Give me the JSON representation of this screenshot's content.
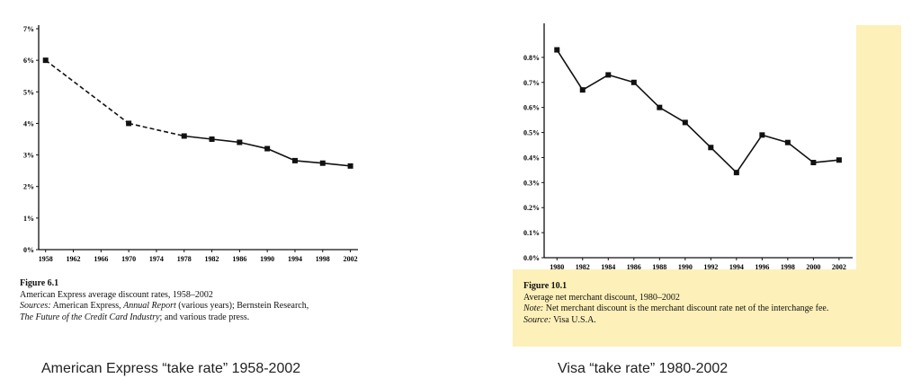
{
  "chart_data": [
    {
      "type": "line",
      "x": [
        1958,
        1970,
        1978,
        1982,
        1986,
        1990,
        1994,
        1998,
        2002
      ],
      "y": [
        6.0,
        4.0,
        3.6,
        3.5,
        3.4,
        3.2,
        2.82,
        2.74,
        2.65
      ],
      "dashed_segments_until": 1978,
      "xticks": [
        "1958",
        "1962",
        "1966",
        "1970",
        "1974",
        "1978",
        "1982",
        "1986",
        "1990",
        "1994",
        "1998",
        "2002"
      ],
      "yticks": [
        "0%",
        "1%",
        "2%",
        "3%",
        "4%",
        "5%",
        "6%",
        "7%"
      ],
      "xlim": [
        1957,
        2004
      ],
      "ylim": [
        0,
        7
      ],
      "title": "",
      "xlabel": "",
      "ylabel": "",
      "grid": false
    },
    {
      "type": "line",
      "x": [
        1980,
        1982,
        1984,
        1986,
        1988,
        1990,
        1992,
        1994,
        1996,
        1998,
        2000,
        2002
      ],
      "y": [
        0.83,
        0.67,
        0.73,
        0.7,
        0.6,
        0.54,
        0.44,
        0.34,
        0.49,
        0.46,
        0.38,
        0.39
      ],
      "xticks": [
        "1980",
        "1982",
        "1984",
        "1986",
        "1988",
        "1990",
        "1992",
        "1994",
        "1996",
        "1998",
        "2000",
        "2002"
      ],
      "yticks": [
        "0.0%",
        "0.1%",
        "0.2%",
        "0.3%",
        "0.4%",
        "0.5%",
        "0.6%",
        "0.7%",
        "0.8%"
      ],
      "xlim": [
        1979,
        2003.2
      ],
      "ylim": [
        0,
        0.9
      ],
      "title": "",
      "xlabel": "",
      "ylabel": "",
      "grid": false
    }
  ],
  "left_figure": {
    "fig_label": "Figure 6.1",
    "caption": "American Express average discount rates, 1958–2002",
    "sources_label": "Sources:",
    "sources_a": "American Express,",
    "sources_b": "Annual Report",
    "sources_c": "(various years); Bernstein Research,",
    "sources_d": "The Future of the Credit Card Industry",
    "sources_e": "; and various trade press.",
    "subtitle": "American Express “take rate” 1958-2002"
  },
  "right_figure": {
    "fig_label": "Figure 10.1",
    "caption": "Average net merchant discount, 1980–2002",
    "note_label": "Note:",
    "note": "Net merchant discount is the merchant discount rate net of the interchange fee.",
    "source_label": "Source:",
    "source": "Visa U.S.A.",
    "subtitle": "Visa “take rate” 1980-2002"
  },
  "colors": {
    "highlight": "#fdf0b8",
    "line": "#111111"
  }
}
